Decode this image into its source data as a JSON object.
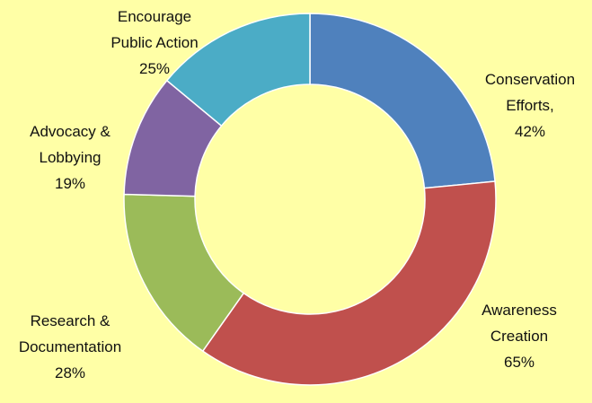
{
  "chart_data": {
    "type": "donut",
    "categories": [
      "Conservation Efforts,",
      "Awareness Creation",
      "Research & Documentation",
      "Advocacy & Lobbying",
      "Encourage Public Action"
    ],
    "values": [
      42,
      65,
      28,
      19,
      25
    ],
    "value_labels": [
      "42%",
      "65%",
      "28%",
      "19%",
      "25%"
    ],
    "colors": [
      "#4f81bd",
      "#c0504d",
      "#9bbb59",
      "#8064a2",
      "#4bacc6"
    ]
  }
}
